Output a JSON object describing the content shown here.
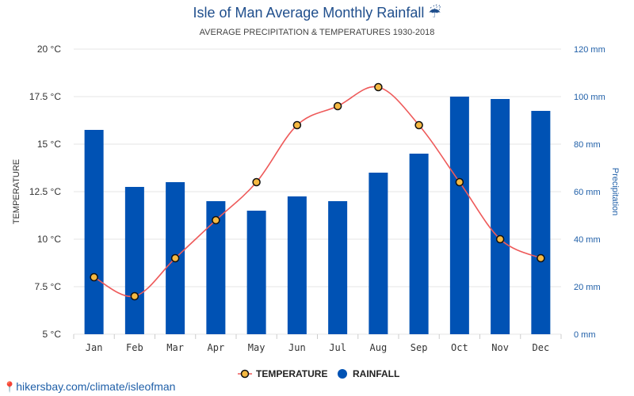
{
  "title": "Isle of Man Average Monthly Rainfall",
  "title_icon": "☔",
  "subtitle": "AVERAGE PRECIPITATION & TEMPERATURES 1930-2018",
  "source": {
    "text": "hikersbay.com/climate/isleofman",
    "icon": "location-pin-icon"
  },
  "colors": {
    "bar": "#0052b4",
    "line": "#ee5a5a",
    "marker_fill": "#f5b942",
    "marker_stroke": "#111111",
    "title": "#1f4e8c",
    "grid": "#e4e4e4",
    "right_axis": "#1f5fa8"
  },
  "chart_data": {
    "type": "bar+line",
    "title": "Isle of Man Average Monthly Rainfall",
    "subtitle": "AVERAGE PRECIPITATION & TEMPERATURES 1930-2018",
    "categories": [
      "Jan",
      "Feb",
      "Mar",
      "Apr",
      "May",
      "Jun",
      "Jul",
      "Aug",
      "Sep",
      "Oct",
      "Nov",
      "Dec"
    ],
    "series": [
      {
        "name": "TEMPERATURE",
        "type": "line",
        "axis": "left",
        "values": [
          8,
          7,
          9,
          11,
          13,
          16,
          17,
          18,
          16,
          13,
          10,
          9
        ]
      },
      {
        "name": "RAINFALL",
        "type": "bar",
        "axis": "right",
        "values": [
          86,
          62,
          64,
          56,
          52,
          58,
          56,
          68,
          76,
          100,
          99,
          94
        ]
      }
    ],
    "left_axis": {
      "label": "TEMPERATURE",
      "range": [
        5,
        20
      ],
      "ticks": [
        5,
        7.5,
        10,
        12.5,
        15,
        17.5,
        20
      ],
      "tick_labels": [
        "5 °C",
        "7.5 °C",
        "10 °C",
        "12.5 °C",
        "15 °C",
        "17.5 °C",
        "20 °C"
      ]
    },
    "right_axis": {
      "label": "Precipitation",
      "range": [
        0,
        120
      ],
      "ticks": [
        0,
        20,
        40,
        60,
        80,
        100,
        120
      ],
      "tick_labels": [
        "0 mm",
        "20 mm",
        "40 mm",
        "60 mm",
        "80 mm",
        "100 mm",
        "120 mm"
      ]
    },
    "grid": true,
    "legend_position": "bottom-center"
  }
}
